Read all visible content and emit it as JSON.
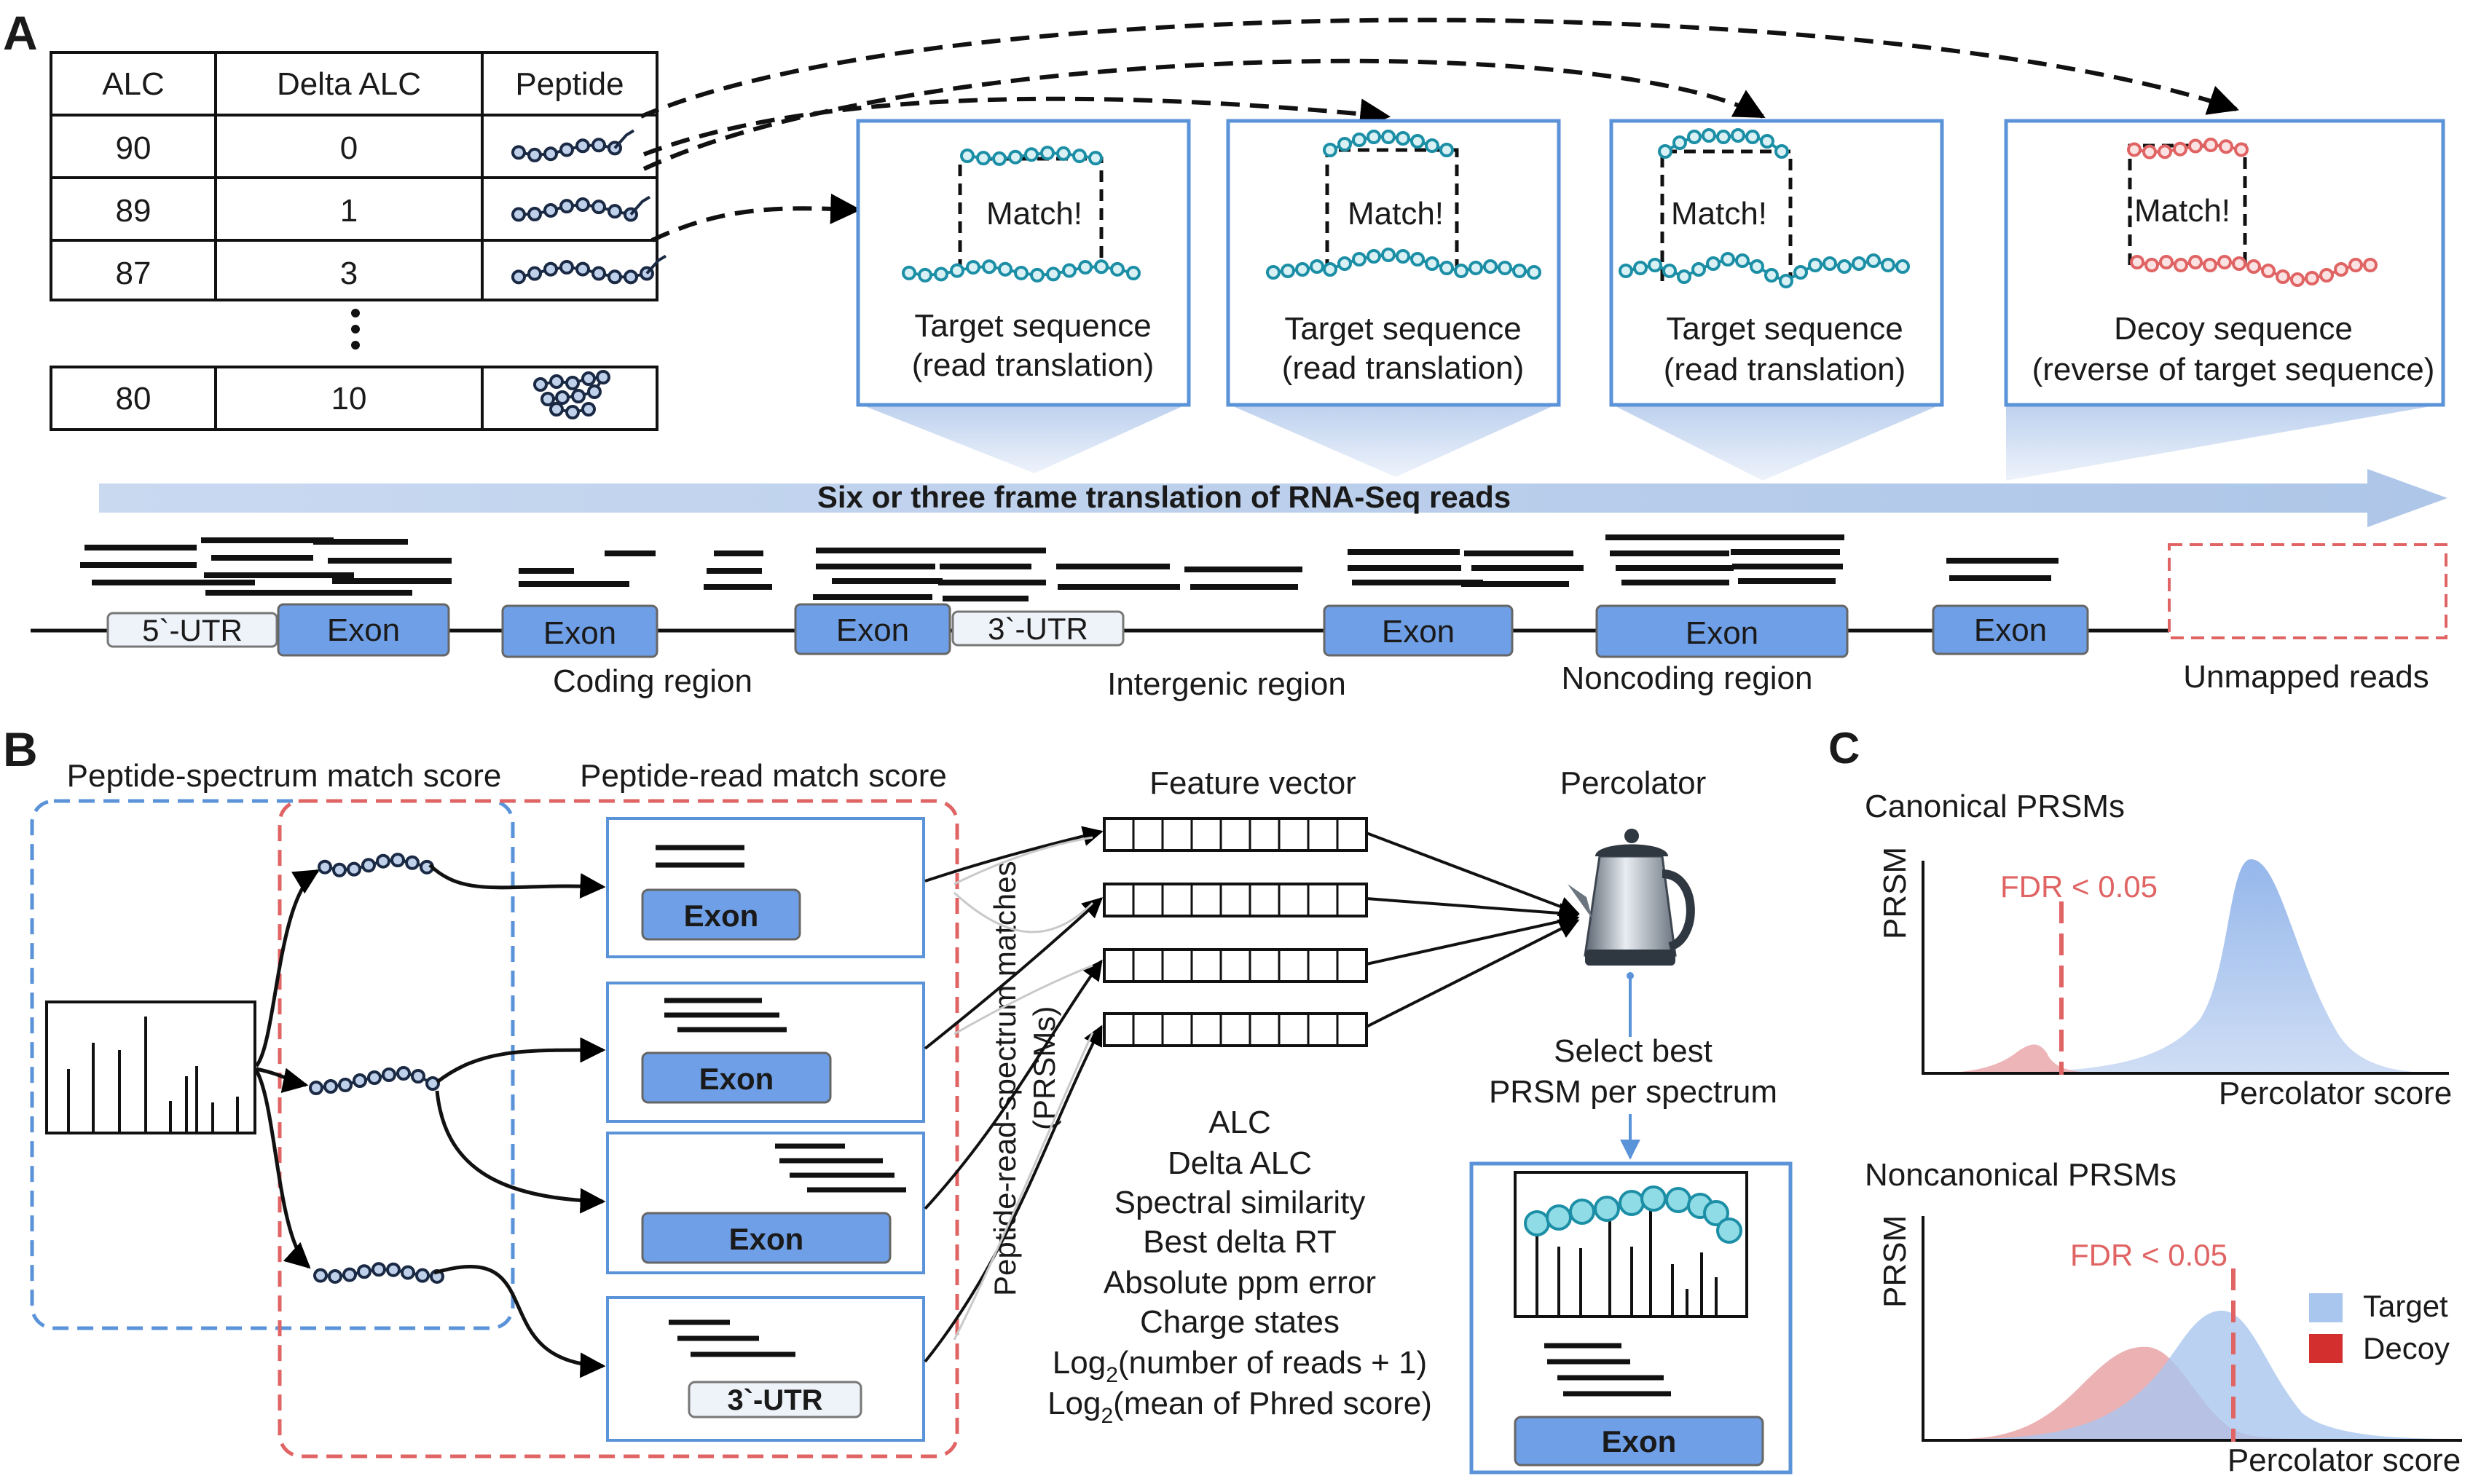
{
  "panel_letters": {
    "a": "A",
    "b": "B",
    "c": "C"
  },
  "panel_a": {
    "table": {
      "headers": [
        "ALC",
        "Delta ALC",
        "Peptide"
      ],
      "rows": [
        {
          "alc": "90",
          "delta": "0"
        },
        {
          "alc": "89",
          "delta": "1"
        },
        {
          "alc": "87",
          "delta": "3"
        },
        {
          "alc": "80",
          "delta": "10"
        }
      ]
    },
    "match_boxes": [
      {
        "match": "Match!",
        "line1": "Target sequence",
        "line2": "(read translation)"
      },
      {
        "match": "Match!",
        "line1": "Target sequence",
        "line2": "(read translation)"
      },
      {
        "match": "Match!",
        "line1": "Target sequence",
        "line2": "(read translation)"
      },
      {
        "match": "Match!",
        "line1": "Decoy sequence",
        "line2": "(reverse of target sequence)"
      }
    ],
    "translation_label": "Six or three frame translation of RNA-Seq reads",
    "genome": {
      "utr5": "5`-UTR",
      "exon": "Exon",
      "utr3": "3`-UTR"
    },
    "regions": {
      "coding": "Coding region",
      "intergenic": "Intergenic region",
      "noncoding": "Noncoding region",
      "unmapped": "Unmapped reads"
    }
  },
  "panel_b": {
    "psm_title": "Peptide-spectrum match score",
    "prm_title": "Peptide-read match score",
    "exon": "Exon",
    "utr3": "3`-UTR",
    "prsm_vertical": [
      "Peptide-read-spectrum matches",
      "(PRSMs)"
    ],
    "feature_title": "Feature vector",
    "percolator_title": "Percolator",
    "features": [
      "ALC",
      "Delta ALC",
      "Spectral similarity",
      "Best delta RT",
      "Absolute ppm error",
      "Charge states",
      "Log",
      "Log"
    ],
    "feature_log1_sub": "2",
    "feature_log1_rest": "(number of reads + 1)",
    "feature_log2_sub": "2",
    "feature_log2_rest": "(mean of Phred score)",
    "select_line1": "Select best",
    "select_line2": "PRSM per spectrum",
    "result_exon": "Exon"
  },
  "panel_c": {
    "chart_data": [
      {
        "type": "area",
        "title": "Canonical PRSMs",
        "xlabel": "Percolator score",
        "ylabel": "PRSM",
        "threshold_label": "FDR < 0.05",
        "series": [
          {
            "name": "Target",
            "color": "#a9c6ef"
          },
          {
            "name": "Decoy",
            "color": "#e8a3a6"
          }
        ]
      },
      {
        "type": "area",
        "title": "Noncanonical PRSMs",
        "xlabel": "Percolator score",
        "ylabel": "PRSM",
        "threshold_label": "FDR < 0.05",
        "series": [
          {
            "name": "Target",
            "color": "#a9c6ef"
          },
          {
            "name": "Decoy",
            "color": "#e8a3a6"
          }
        ],
        "legend": [
          {
            "name": "Target",
            "color": "#a9c6ef"
          },
          {
            "name": "Decoy",
            "color": "#d32f2f"
          }
        ]
      }
    ]
  },
  "colors": {
    "teal": "#1c8fa6",
    "bead_fill": "#d9f1f5",
    "decoy": "#e06464",
    "exon_fill": "#6f9fe6",
    "box_border": "#5b93d9",
    "red_dash": "#e06464",
    "blue_dash": "#5b93d9"
  }
}
